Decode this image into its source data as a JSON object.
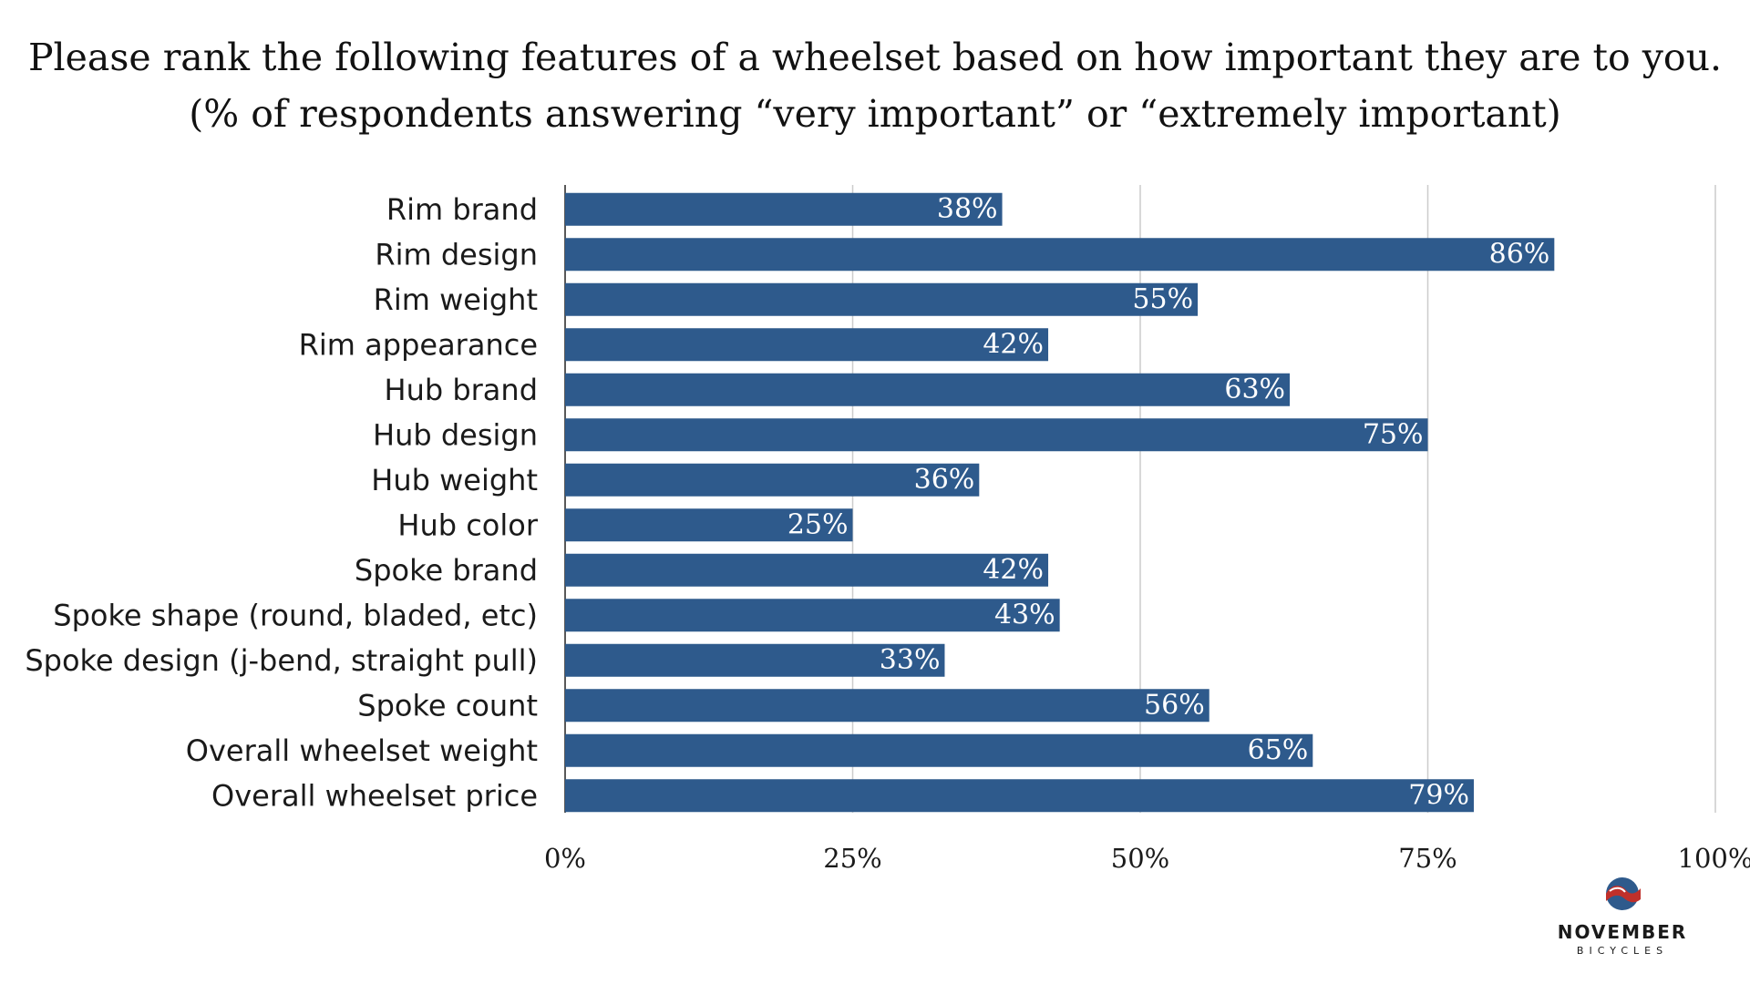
{
  "chart_data": {
    "type": "bar",
    "orientation": "horizontal",
    "title": "Please rank the following features of a wheelset based on how important they are to you.",
    "subtitle": "(% of respondents answering “very important” or “extremely important)",
    "categories": [
      "Rim brand",
      "Rim design",
      "Rim weight",
      "Rim appearance",
      "Hub brand",
      "Hub design",
      "Hub weight",
      "Hub color",
      "Spoke brand",
      "Spoke shape (round, bladed, etc)",
      "Spoke design (j-bend, straight pull)",
      "Spoke count",
      "Overall wheelset weight",
      "Overall wheelset price"
    ],
    "values": [
      38,
      86,
      55,
      42,
      63,
      75,
      36,
      25,
      42,
      43,
      33,
      56,
      65,
      79
    ],
    "value_labels": [
      "38%",
      "86%",
      "55%",
      "42%",
      "63%",
      "75%",
      "36%",
      "25%",
      "42%",
      "43%",
      "33%",
      "56%",
      "65%",
      "79%"
    ],
    "xlim": [
      0,
      100
    ],
    "x_ticks": [
      0,
      25,
      50,
      75,
      100
    ],
    "x_tick_labels": [
      "0%",
      "25%",
      "50%",
      "75%",
      "100%"
    ],
    "grid": true,
    "legend": "none",
    "bar_color": "#2e5a8c"
  },
  "logo": {
    "icon": "november-bicycles-logo-icon",
    "brand": "NOVEMBER",
    "sub": "BICYCLES",
    "colors": {
      "blue": "#2e5a8c",
      "red": "#c0302a"
    }
  }
}
